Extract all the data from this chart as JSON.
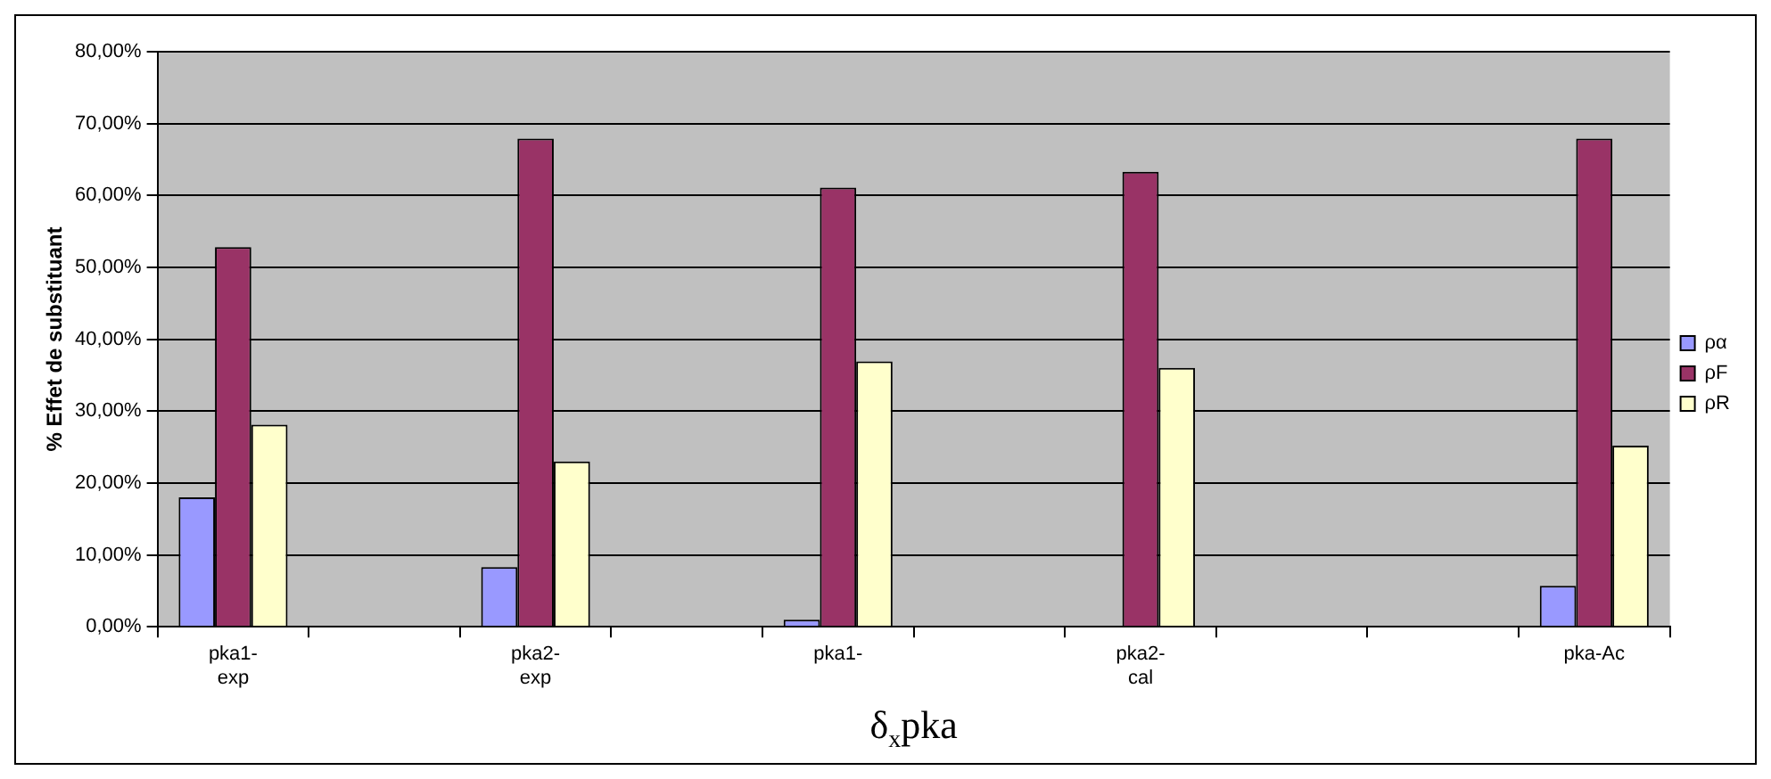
{
  "chart_data": {
    "type": "bar",
    "xlabel": "δ$_{x}$pka",
    "ylabel": "% Effet de substituant",
    "categories": [
      "pka1-\nexp",
      null,
      "pka2-\nexp",
      null,
      "pka1-",
      null,
      "pka2-\ncal",
      null,
      null,
      "pka-Ac"
    ],
    "series": [
      {
        "name": "ρα",
        "color": "#9999ff",
        "values": [
          18,
          null,
          8.3,
          null,
          1,
          null,
          0,
          null,
          null,
          5.7
        ]
      },
      {
        "name": "ρF",
        "color": "#993366",
        "values": [
          52.8,
          null,
          67.9,
          null,
          61.1,
          null,
          63.3,
          null,
          null,
          67.9
        ]
      },
      {
        "name": "ρR",
        "color": "#ffffcc",
        "values": [
          28.1,
          null,
          23,
          null,
          36.9,
          null,
          36,
          null,
          null,
          25.2
        ]
      }
    ],
    "ylim": [
      0,
      80
    ],
    "yticks": [
      {
        "value": 0,
        "label": "0,00%"
      },
      {
        "value": 10,
        "label": "10,00%"
      },
      {
        "value": 20,
        "label": "20,00%"
      },
      {
        "value": 30,
        "label": "30,00%"
      },
      {
        "value": 40,
        "label": "40,00%"
      },
      {
        "value": 50,
        "label": "50,00%"
      },
      {
        "value": 60,
        "label": "60,00%"
      },
      {
        "value": 70,
        "label": "70,00%"
      },
      {
        "value": 80,
        "label": "80,00%"
      }
    ],
    "grid": "y",
    "legend": "right"
  }
}
